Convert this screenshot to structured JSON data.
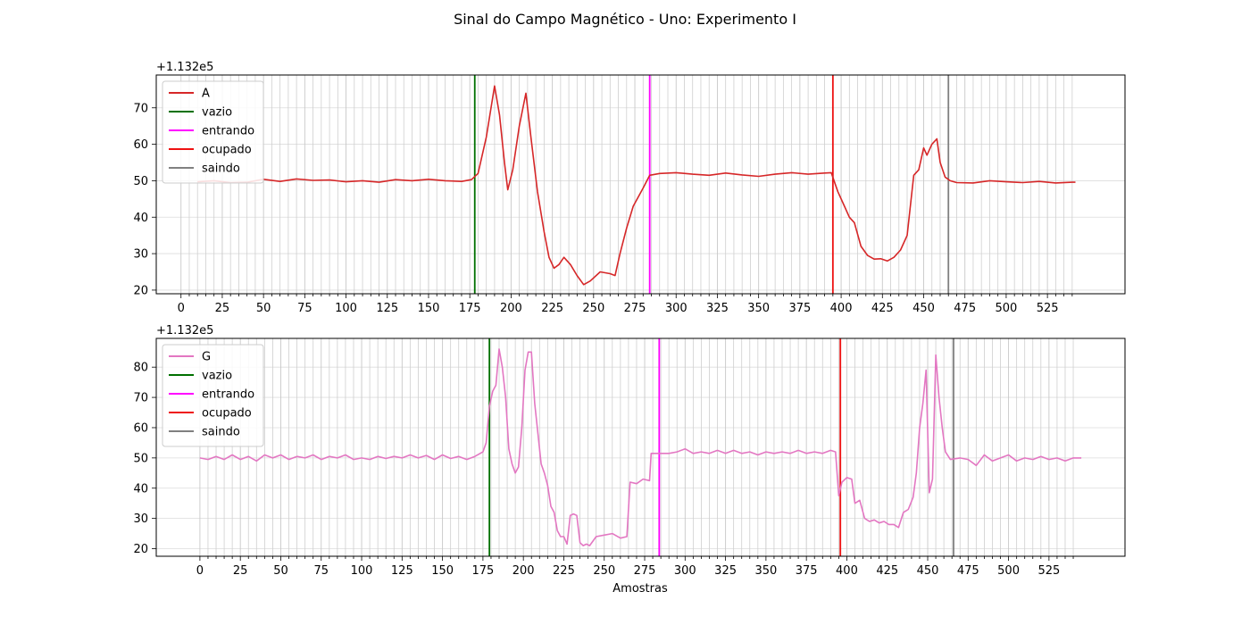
{
  "figure": {
    "suptitle": "Sinal do Campo Magnético - Uno: Experimento I"
  },
  "chart_data": [
    {
      "type": "line",
      "offset_label": "+1.132e5",
      "y_offset": 113200,
      "xlabel": "",
      "ylabel": "",
      "xlim": [
        -15,
        572
      ],
      "ylim": [
        19,
        79
      ],
      "x_ticks": [
        0,
        25,
        50,
        75,
        100,
        125,
        150,
        175,
        200,
        225,
        250,
        275,
        300,
        325,
        350,
        375,
        400,
        425,
        450,
        475,
        500,
        525
      ],
      "x_tick_labels": [
        "0",
        "25",
        "50",
        "75",
        "100",
        "125",
        "150",
        "175",
        "200",
        "225",
        "250",
        "275",
        "300",
        "325",
        "350",
        "375",
        "400",
        "425",
        "450",
        "475",
        "500",
        "525"
      ],
      "y_ticks": [
        20,
        30,
        40,
        50,
        60,
        70
      ],
      "y_tick_labels": [
        "20",
        "30",
        "40",
        "50",
        "60",
        "70"
      ],
      "grid": true,
      "legend_position": "upper-left",
      "series": [
        {
          "name": "A",
          "color": "#d62728",
          "points": [
            [
              10,
              49.7
            ],
            [
              20,
              50
            ],
            [
              30,
              49.5
            ],
            [
              40,
              49.6
            ],
            [
              50,
              50.4
            ],
            [
              60,
              49.8
            ],
            [
              70,
              50.5
            ],
            [
              80,
              50.1
            ],
            [
              90,
              50.2
            ],
            [
              100,
              49.7
            ],
            [
              110,
              50
            ],
            [
              120,
              49.6
            ],
            [
              130,
              50.3
            ],
            [
              140,
              50
            ],
            [
              150,
              50.4
            ],
            [
              160,
              50
            ],
            [
              170,
              49.8
            ],
            [
              176,
              50.3
            ],
            [
              180,
              52
            ],
            [
              185,
              62
            ],
            [
              190,
              76
            ],
            [
              193,
              68
            ],
            [
              196,
              55
            ],
            [
              198,
              47.5
            ],
            [
              201,
              53
            ],
            [
              205,
              65
            ],
            [
              209,
              74
            ],
            [
              212,
              62
            ],
            [
              216,
              47
            ],
            [
              220,
              36
            ],
            [
              223,
              29
            ],
            [
              226,
              26
            ],
            [
              229,
              27
            ],
            [
              232,
              29
            ],
            [
              236,
              27
            ],
            [
              240,
              24
            ],
            [
              244,
              21.5
            ],
            [
              248,
              22.5
            ],
            [
              254,
              25
            ],
            [
              260,
              24.5
            ],
            [
              263,
              24
            ],
            [
              266,
              30
            ],
            [
              270,
              37
            ],
            [
              274,
              43
            ],
            [
              280,
              48
            ],
            [
              284,
              51.5
            ],
            [
              290,
              52
            ],
            [
              300,
              52.2
            ],
            [
              310,
              51.8
            ],
            [
              320,
              51.5
            ],
            [
              330,
              52.1
            ],
            [
              340,
              51.6
            ],
            [
              350,
              51.2
            ],
            [
              360,
              51.8
            ],
            [
              370,
              52.2
            ],
            [
              380,
              51.8
            ],
            [
              390,
              52.1
            ],
            [
              394,
              52.2
            ],
            [
              398,
              47
            ],
            [
              402,
              43
            ],
            [
              405,
              40
            ],
            [
              408,
              38.5
            ],
            [
              412,
              32
            ],
            [
              416,
              29.5
            ],
            [
              420,
              28.5
            ],
            [
              424,
              28.6
            ],
            [
              428,
              28
            ],
            [
              432,
              29
            ],
            [
              436,
              31
            ],
            [
              440,
              35
            ],
            [
              444,
              51.5
            ],
            [
              447,
              53
            ],
            [
              450,
              59
            ],
            [
              452,
              57
            ],
            [
              455,
              60
            ],
            [
              458,
              61.5
            ],
            [
              460,
              55
            ],
            [
              463,
              51
            ],
            [
              466,
              50
            ],
            [
              470,
              49.5
            ],
            [
              480,
              49.4
            ],
            [
              490,
              50
            ],
            [
              500,
              49.7
            ],
            [
              510,
              49.5
            ],
            [
              520,
              49.8
            ],
            [
              530,
              49.4
            ],
            [
              540,
              49.6
            ],
            [
              542,
              49.6
            ]
          ]
        },
        {
          "name": "vazio",
          "color": "#007000",
          "vline_x": 178
        },
        {
          "name": "entrando",
          "color": "#ff00ff",
          "vline_x": 284
        },
        {
          "name": "ocupado",
          "color": "#ee1111",
          "vline_x": 395
        },
        {
          "name": "saindo",
          "color": "#808080",
          "vline_x": 465
        }
      ]
    },
    {
      "type": "line",
      "offset_label": "+1.132e5",
      "y_offset": 113200,
      "xlabel": "Amostras",
      "ylabel": "",
      "xlim": [
        -27,
        572
      ],
      "ylim": [
        17.5,
        89.5
      ],
      "x_ticks": [
        0,
        25,
        50,
        75,
        100,
        125,
        150,
        175,
        200,
        225,
        250,
        275,
        300,
        325,
        350,
        375,
        400,
        425,
        450,
        475,
        500,
        525
      ],
      "x_tick_labels": [
        "0",
        "25",
        "50",
        "75",
        "100",
        "125",
        "150",
        "175",
        "200",
        "225",
        "250",
        "275",
        "300",
        "325",
        "350",
        "375",
        "400",
        "425",
        "450",
        "475",
        "500",
        "525"
      ],
      "y_ticks": [
        20,
        30,
        40,
        50,
        60,
        70,
        80
      ],
      "y_tick_labels": [
        "20",
        "30",
        "40",
        "50",
        "60",
        "70",
        "80"
      ],
      "grid": true,
      "legend_position": "upper-left",
      "series": [
        {
          "name": "G",
          "color": "#e377c2",
          "points": [
            [
              0,
              50
            ],
            [
              5,
              49.5
            ],
            [
              10,
              50.5
            ],
            [
              15,
              49.5
            ],
            [
              20,
              51
            ],
            [
              25,
              49.5
            ],
            [
              30,
              50.5
            ],
            [
              35,
              49
            ],
            [
              40,
              51
            ],
            [
              45,
              50
            ],
            [
              50,
              51
            ],
            [
              55,
              49.5
            ],
            [
              60,
              50.5
            ],
            [
              65,
              50
            ],
            [
              70,
              51
            ],
            [
              75,
              49.5
            ],
            [
              80,
              50.5
            ],
            [
              85,
              50
            ],
            [
              90,
              51
            ],
            [
              95,
              49.5
            ],
            [
              100,
              50
            ],
            [
              105,
              49.5
            ],
            [
              110,
              50.5
            ],
            [
              115,
              49.8
            ],
            [
              120,
              50.5
            ],
            [
              125,
              50
            ],
            [
              130,
              51
            ],
            [
              135,
              50
            ],
            [
              140,
              50.8
            ],
            [
              145,
              49.5
            ],
            [
              150,
              51
            ],
            [
              155,
              49.8
            ],
            [
              160,
              50.5
            ],
            [
              165,
              49.5
            ],
            [
              170,
              50.5
            ],
            [
              175,
              52
            ],
            [
              177,
              55
            ],
            [
              179,
              67
            ],
            [
              181,
              72
            ],
            [
              183,
              74
            ],
            [
              185,
              86
            ],
            [
              187,
              80
            ],
            [
              189,
              70
            ],
            [
              191,
              53
            ],
            [
              193,
              48
            ],
            [
              195,
              45
            ],
            [
              197,
              47
            ],
            [
              199,
              60
            ],
            [
              201,
              79
            ],
            [
              203,
              85
            ],
            [
              205,
              85
            ],
            [
              207,
              68
            ],
            [
              209,
              58
            ],
            [
              211,
              48
            ],
            [
              213,
              45
            ],
            [
              215,
              41
            ],
            [
              217,
              34
            ],
            [
              219,
              32
            ],
            [
              221,
              26
            ],
            [
              223,
              24
            ],
            [
              225,
              24
            ],
            [
              227,
              21.5
            ],
            [
              229,
              31
            ],
            [
              231,
              31.5
            ],
            [
              233,
              31
            ],
            [
              235,
              22
            ],
            [
              237,
              21
            ],
            [
              239,
              21.5
            ],
            [
              241,
              21
            ],
            [
              245,
              24
            ],
            [
              250,
              24.5
            ],
            [
              255,
              25
            ],
            [
              260,
              23.5
            ],
            [
              264,
              24
            ],
            [
              266,
              42
            ],
            [
              270,
              41.5
            ],
            [
              274,
              43
            ],
            [
              278,
              42.5
            ],
            [
              279,
              51.5
            ],
            [
              284,
              51.5
            ],
            [
              290,
              51.5
            ],
            [
              295,
              52
            ],
            [
              300,
              53
            ],
            [
              305,
              51.5
            ],
            [
              310,
              52
            ],
            [
              315,
              51.5
            ],
            [
              320,
              52.5
            ],
            [
              325,
              51.5
            ],
            [
              330,
              52.5
            ],
            [
              335,
              51.5
            ],
            [
              340,
              52
            ],
            [
              345,
              51
            ],
            [
              350,
              52
            ],
            [
              355,
              51.5
            ],
            [
              360,
              52
            ],
            [
              365,
              51.5
            ],
            [
              370,
              52.5
            ],
            [
              375,
              51.5
            ],
            [
              380,
              52
            ],
            [
              385,
              51.5
            ],
            [
              390,
              52.5
            ],
            [
              393,
              52
            ],
            [
              395,
              37.5
            ],
            [
              397,
              42
            ],
            [
              400,
              43.5
            ],
            [
              403,
              43
            ],
            [
              405,
              35
            ],
            [
              408,
              36
            ],
            [
              411,
              30
            ],
            [
              414,
              29
            ],
            [
              417,
              29.5
            ],
            [
              420,
              28.5
            ],
            [
              423,
              29
            ],
            [
              426,
              28
            ],
            [
              429,
              28
            ],
            [
              432,
              27
            ],
            [
              435,
              32
            ],
            [
              438,
              33
            ],
            [
              441,
              37
            ],
            [
              443,
              45
            ],
            [
              445,
              60
            ],
            [
              447,
              68
            ],
            [
              449,
              79
            ],
            [
              451,
              38.5
            ],
            [
              453,
              43
            ],
            [
              455,
              84
            ],
            [
              457,
              70
            ],
            [
              459,
              60
            ],
            [
              461,
              52
            ],
            [
              464,
              49.5
            ],
            [
              470,
              50
            ],
            [
              475,
              49.5
            ],
            [
              480,
              47.5
            ],
            [
              485,
              51
            ],
            [
              490,
              49
            ],
            [
              495,
              50
            ],
            [
              500,
              51
            ],
            [
              505,
              49
            ],
            [
              510,
              50
            ],
            [
              515,
              49.5
            ],
            [
              520,
              50.5
            ],
            [
              525,
              49.5
            ],
            [
              530,
              50
            ],
            [
              535,
              49
            ],
            [
              540,
              50
            ],
            [
              545,
              50
            ]
          ]
        },
        {
          "name": "vazio",
          "color": "#007000",
          "vline_x": 179
        },
        {
          "name": "entrando",
          "color": "#ff00ff",
          "vline_x": 284
        },
        {
          "name": "ocupado",
          "color": "#ee1111",
          "vline_x": 396
        },
        {
          "name": "saindo",
          "color": "#808080",
          "vline_x": 466
        }
      ]
    }
  ]
}
